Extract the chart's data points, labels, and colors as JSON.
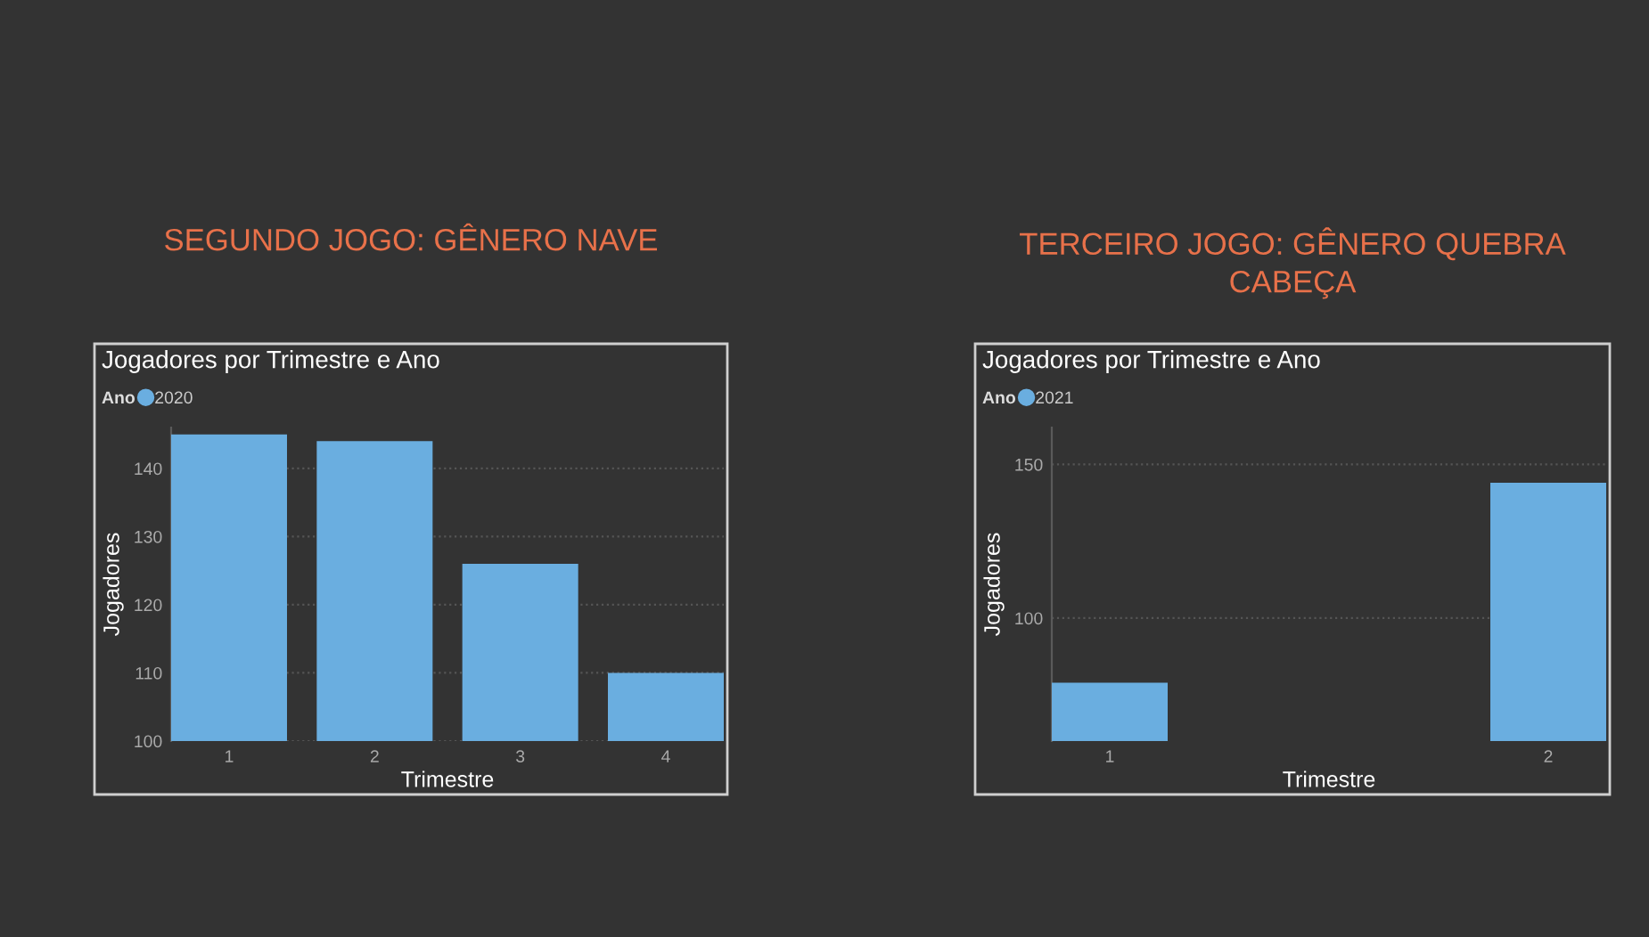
{
  "chart_data": [
    {
      "type": "bar",
      "title": "SEGUNDO JOGO: GÊNERO NAVE",
      "subtitle": "Jogadores por Trimestre e Ano",
      "xlabel": "Trimestre",
      "ylabel": "Jogadores",
      "legend_title": "Ano",
      "legend": "top left",
      "grid": "y",
      "categories": [
        "1",
        "2",
        "3",
        "4"
      ],
      "series": [
        {
          "name": "2020",
          "color": "#6aaee0",
          "values": [
            145,
            144,
            126,
            110
          ]
        }
      ],
      "ylim": [
        100,
        146
      ],
      "yticks": [
        100,
        110,
        120,
        130,
        140
      ]
    },
    {
      "type": "bar",
      "title": "TERCEIRO JOGO: GÊNERO QUEBRA CABEÇA",
      "subtitle": "Jogadores por Trimestre e Ano",
      "xlabel": "Trimestre",
      "ylabel": "Jogadores",
      "legend_title": "Ano",
      "legend": "top left",
      "grid": "y",
      "categories": [
        "1",
        "2"
      ],
      "series": [
        {
          "name": "2021",
          "color": "#6aaee0",
          "values": [
            79,
            144
          ]
        }
      ],
      "ylim": [
        60,
        162
      ],
      "yticks": [
        100,
        150
      ]
    }
  ]
}
